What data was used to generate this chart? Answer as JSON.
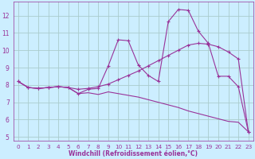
{
  "background_color": "#cceeff",
  "grid_color": "#aacccc",
  "line_color": "#993399",
  "xlabel": "Windchill (Refroidissement éolien,°C)",
  "xlim": [
    -0.5,
    23.5
  ],
  "ylim": [
    4.8,
    12.8
  ],
  "yticks": [
    5,
    6,
    7,
    8,
    9,
    10,
    11,
    12
  ],
  "xticks": [
    0,
    1,
    2,
    3,
    4,
    5,
    6,
    7,
    8,
    9,
    10,
    11,
    12,
    13,
    14,
    15,
    16,
    17,
    18,
    19,
    20,
    21,
    22,
    23
  ],
  "line1_x": [
    0,
    1,
    2,
    3,
    4,
    5,
    6,
    7,
    8,
    9,
    10,
    11,
    12,
    13,
    14,
    15,
    16,
    17,
    18,
    19,
    20,
    21,
    22,
    23
  ],
  "line1_y": [
    8.2,
    7.85,
    7.8,
    7.85,
    7.9,
    7.85,
    7.5,
    7.75,
    7.8,
    9.1,
    10.6,
    10.55,
    9.15,
    8.55,
    8.2,
    11.65,
    12.35,
    12.3,
    11.1,
    10.4,
    8.5,
    8.5,
    7.9,
    5.3
  ],
  "line2_x": [
    0,
    1,
    2,
    3,
    4,
    5,
    6,
    7,
    8,
    9,
    10,
    11,
    12,
    13,
    14,
    15,
    16,
    17,
    18,
    19,
    20,
    21,
    22,
    23
  ],
  "line2_y": [
    8.2,
    7.85,
    7.8,
    7.85,
    7.9,
    7.85,
    7.75,
    7.8,
    7.9,
    8.05,
    8.3,
    8.55,
    8.8,
    9.1,
    9.4,
    9.7,
    10.0,
    10.3,
    10.4,
    10.35,
    10.2,
    9.9,
    9.5,
    5.3
  ],
  "line3_x": [
    0,
    1,
    2,
    3,
    4,
    5,
    6,
    7,
    8,
    9,
    10,
    11,
    12,
    13,
    14,
    15,
    16,
    17,
    18,
    19,
    20,
    21,
    22,
    23
  ],
  "line3_y": [
    8.2,
    7.85,
    7.8,
    7.85,
    7.9,
    7.85,
    7.5,
    7.55,
    7.45,
    7.6,
    7.5,
    7.4,
    7.3,
    7.15,
    7.0,
    6.85,
    6.7,
    6.5,
    6.35,
    6.2,
    6.05,
    5.9,
    5.85,
    5.3
  ],
  "tick_fontsize": 5.2,
  "label_fontsize": 5.5
}
